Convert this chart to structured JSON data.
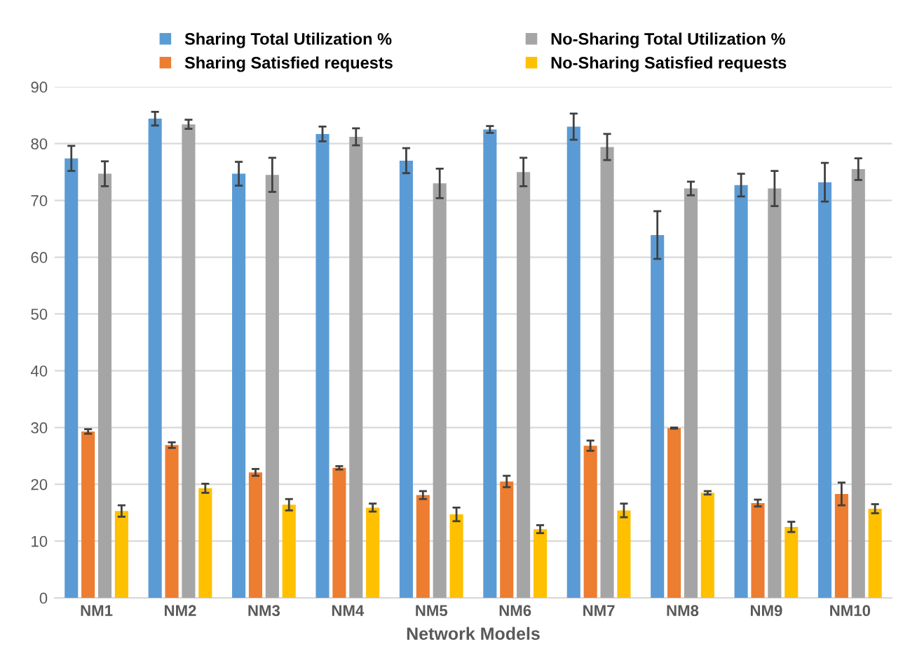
{
  "chart_data": {
    "type": "bar",
    "xlabel": "Network Models",
    "categories": [
      "NM1",
      "NM2",
      "NM3",
      "NM4",
      "NM5",
      "NM6",
      "NM7",
      "NM8",
      "NM9",
      "NM10"
    ],
    "ylim": [
      0,
      90
    ],
    "yticks": [
      0,
      10,
      20,
      30,
      40,
      50,
      60,
      70,
      80,
      90
    ],
    "grid": "y",
    "legend": "top",
    "series": [
      {
        "name": "Sharing Total Utilization %",
        "color": "#5b9bd5",
        "values": [
          77.4,
          84.4,
          74.7,
          81.7,
          77.0,
          82.5,
          83.0,
          63.9,
          72.7,
          73.2
        ],
        "errors": [
          2.2,
          1.2,
          2.1,
          1.3,
          2.2,
          0.6,
          2.3,
          4.2,
          2.0,
          3.4
        ]
      },
      {
        "name": "Sharing Satisfied requests",
        "color": "#ed7d31",
        "values": [
          29.3,
          26.9,
          22.1,
          22.9,
          18.1,
          20.5,
          26.8,
          29.9,
          16.7,
          18.3
        ],
        "errors": [
          0.4,
          0.5,
          0.6,
          0.3,
          0.7,
          1.0,
          0.9,
          0.1,
          0.6,
          2.0
        ]
      },
      {
        "name": "No-Sharing Total Utilization %",
        "color": "#a5a5a5",
        "values": [
          74.7,
          83.4,
          74.5,
          81.2,
          73.0,
          75.0,
          79.4,
          72.1,
          72.1,
          75.5
        ],
        "errors": [
          2.2,
          0.8,
          3.0,
          1.5,
          2.6,
          2.5,
          2.3,
          1.2,
          3.1,
          1.9
        ]
      },
      {
        "name": "No-Sharing Satisfied requests",
        "color": "#ffc000",
        "values": [
          15.3,
          19.3,
          16.4,
          15.9,
          14.7,
          12.1,
          15.4,
          18.5,
          12.5,
          15.7
        ],
        "errors": [
          1.0,
          0.8,
          1.0,
          0.7,
          1.2,
          0.7,
          1.2,
          0.3,
          0.9,
          0.8
        ]
      }
    ]
  }
}
